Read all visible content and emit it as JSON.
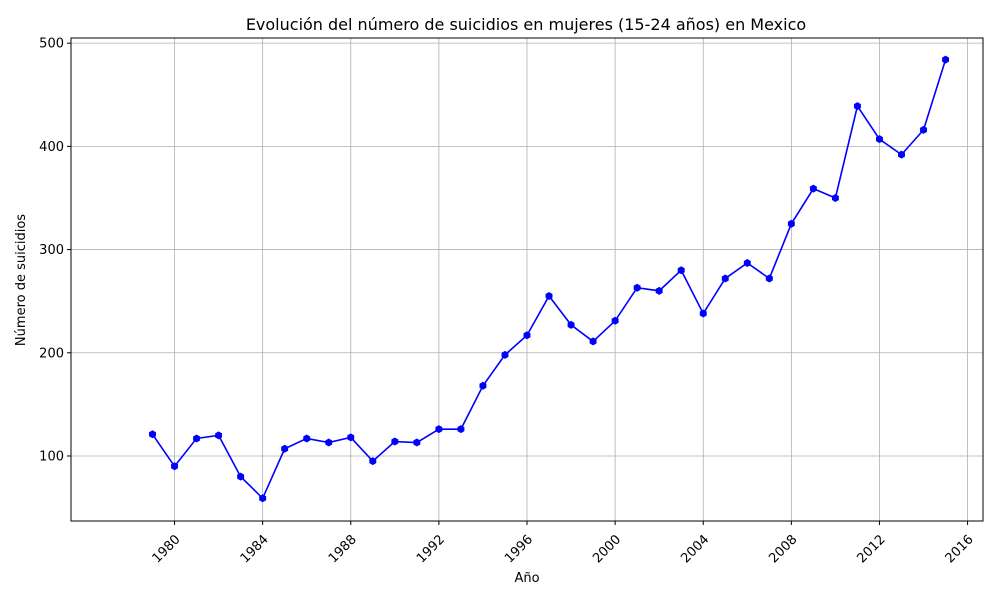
{
  "chart_data": {
    "type": "line",
    "title": "Evolución del número de suicidios en mujeres (15-24 años) en Mexico",
    "xlabel": "Año",
    "ylabel": "Número de suicidios",
    "xlim": [
      1975.3,
      2016.7
    ],
    "ylim": [
      37,
      505
    ],
    "xticks": [
      1980,
      1984,
      1988,
      1992,
      1996,
      2000,
      2004,
      2008,
      2012,
      2016
    ],
    "yticks": [
      100,
      200,
      300,
      400,
      500
    ],
    "grid": true,
    "line_color": "#0000ff",
    "series": [
      {
        "x": [
          1979,
          1980,
          1981,
          1982,
          1983,
          1984,
          1985,
          1986,
          1987,
          1988,
          1989,
          1990,
          1991,
          1992,
          1993,
          1994,
          1995,
          1996,
          1997,
          1998,
          1999,
          2000,
          2001,
          2002,
          2003,
          2004,
          2005,
          2006,
          2007,
          2008,
          2009,
          2010,
          2011,
          2012,
          2013,
          2014,
          2015
        ],
        "y": [
          121,
          90,
          117,
          120,
          80,
          59,
          107,
          117,
          113,
          118,
          95,
          114,
          113,
          126,
          126,
          168,
          198,
          217,
          255,
          227,
          211,
          231,
          263,
          260,
          280,
          238,
          272,
          287,
          272,
          325,
          359,
          350,
          439,
          407,
          392,
          416,
          484
        ]
      }
    ]
  }
}
